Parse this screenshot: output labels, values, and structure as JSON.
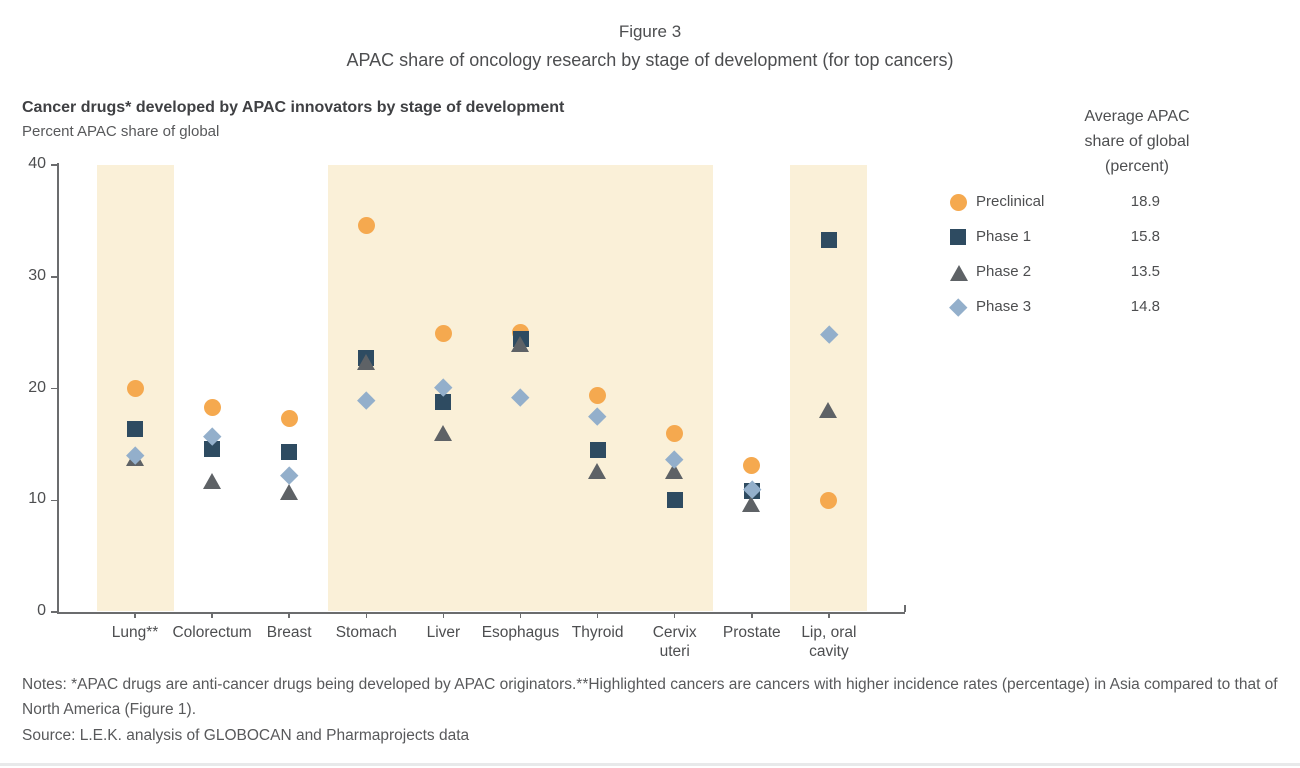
{
  "figure": {
    "label": "Figure 3",
    "title": "APAC share of oncology research by stage of development (for top cancers)"
  },
  "chart_header": {
    "title": "Cancer drugs* developed by APAC innovators by stage of development",
    "subtitle": "Percent APAC share of global"
  },
  "legend_header": "Average APAC\nshare of global\n(percent)",
  "chart_data": {
    "type": "scatter",
    "title": "Cancer drugs* developed by APAC innovators by stage of development",
    "ylabel": "Percent APAC share of global",
    "ylim": [
      0,
      40
    ],
    "yticks": [
      0,
      10,
      20,
      30,
      40
    ],
    "grid": false,
    "legend_position": "right",
    "categories": [
      "Lung**",
      "Colorectum",
      "Breast",
      "Stomach",
      "Liver",
      "Esophagus",
      "Thyroid",
      "Cervix\nuteri",
      "Prostate",
      "Lip, oral\ncavity"
    ],
    "highlighted": [
      true,
      false,
      false,
      true,
      true,
      true,
      true,
      true,
      false,
      true
    ],
    "highlight_color": "#faf0d8",
    "series": [
      {
        "name": "Preclinical",
        "marker": "circle",
        "color": "#f5a94f",
        "average": "18.9",
        "values": [
          20.0,
          18.3,
          17.3,
          34.6,
          24.9,
          25.0,
          19.4,
          16.0,
          13.1,
          10.0
        ]
      },
      {
        "name": "Phase 1",
        "marker": "square",
        "color": "#2e4b61",
        "average": "15.8",
        "values": [
          16.4,
          14.6,
          14.3,
          22.7,
          18.8,
          24.4,
          14.5,
          10.0,
          10.8,
          33.3
        ]
      },
      {
        "name": "Phase 2",
        "marker": "triangle",
        "color": "#5e6266",
        "average": "13.5",
        "values": [
          13.8,
          11.7,
          10.7,
          22.4,
          16.0,
          24.0,
          12.6,
          12.6,
          9.7,
          18.1
        ]
      },
      {
        "name": "Phase 3",
        "marker": "diamond",
        "color": "#93afcb",
        "average": "14.8",
        "values": [
          14.0,
          15.7,
          12.2,
          19.0,
          20.1,
          19.2,
          17.5,
          13.7,
          11.0,
          24.9
        ]
      }
    ]
  },
  "notes": {
    "text": "Notes: *APAC drugs are anti-cancer drugs being developed by APAC originators.**Highlighted cancers are cancers with higher incidence rates (percentage) in Asia compared to that of North America (Figure 1).",
    "source": "Source: L.E.K. analysis of GLOBOCAN and Pharmaprojects data"
  }
}
